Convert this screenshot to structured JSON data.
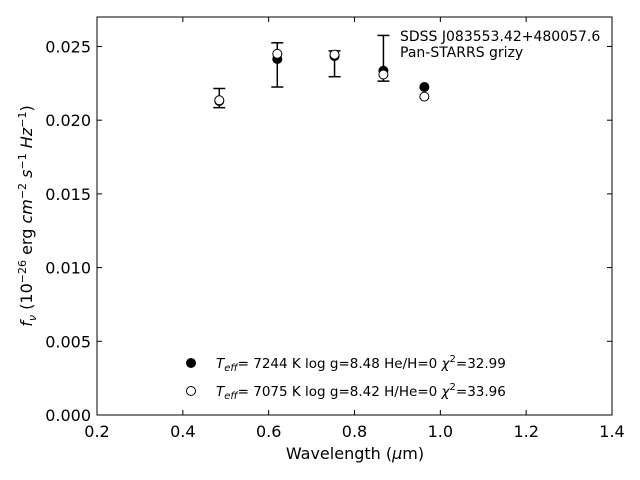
{
  "chart_data": {
    "type": "scatter",
    "title": "",
    "xlabel": "Wavelength (μm)",
    "ylabel": "f_ν (10^-26 erg cm^-2 s^-1 Hz^-1)",
    "xlim": [
      0.2,
      1.4
    ],
    "ylim": [
      0.0,
      0.027
    ],
    "xticks": [
      0.2,
      0.4,
      0.6,
      0.8,
      1.0,
      1.2,
      1.4
    ],
    "yticks": [
      0.0,
      0.005,
      0.01,
      0.015,
      0.02,
      0.025
    ],
    "xtick_labels": [
      "0.2",
      "0.4",
      "0.6",
      "0.8",
      "1.0",
      "1.2",
      "1.4"
    ],
    "ytick_labels": [
      "0.000",
      "0.005",
      "0.010",
      "0.015",
      "0.020",
      "0.025"
    ],
    "grid": false,
    "annotation": [
      "SDSS J083553.42+480057.6",
      "Pan-STARRS grizy"
    ],
    "observed": {
      "x": [
        0.4849,
        0.6201,
        0.7535,
        0.8674,
        0.9628
      ],
      "yerr_low": [
        0.02085,
        0.02225,
        0.02295,
        0.02265,
        null
      ],
      "yerr_high": [
        0.02215,
        0.02525,
        0.0247,
        0.02575,
        null
      ]
    },
    "series": [
      {
        "name": "T_eff= 7244 K log g=8.48 He/H=0 χ²=32.99",
        "marker": "filled-circle",
        "x": [
          0.4849,
          0.6201,
          0.7535,
          0.8674,
          0.9628
        ],
        "y": [
          0.0213,
          0.02415,
          0.02435,
          0.02335,
          0.02225
        ]
      },
      {
        "name": "T_eff= 7075 K log g=8.42 H/He=0 χ²=33.96",
        "marker": "open-circle",
        "x": [
          0.4849,
          0.6201,
          0.7535,
          0.8674,
          0.9628
        ],
        "y": [
          0.02135,
          0.0245,
          0.02445,
          0.0231,
          0.0216
        ]
      }
    ],
    "legend": [
      {
        "marker": "filled-circle",
        "teff": "7244 K",
        "logg": "log g=8.48",
        "comp": "He/H=0",
        "chi2": "=32.99"
      },
      {
        "marker": "open-circle",
        "teff": "7075 K",
        "logg": "log g=8.42",
        "comp": "H/He=0",
        "chi2": "=33.96"
      }
    ]
  }
}
